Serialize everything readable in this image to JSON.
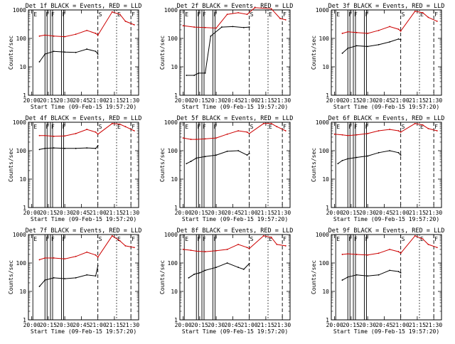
{
  "figure": {
    "ylabel": "Counts/sec",
    "xlabel": "Start Time (09-Feb-15 19:57:20)",
    "yticks": [
      "1",
      "10",
      "100",
      "1000"
    ],
    "xticks": [
      "20:00",
      "20:15",
      "20:30",
      "20:45",
      "21:00",
      "21:15",
      "21:30"
    ],
    "colors": {
      "events": "#000000",
      "lld": "#cc0000"
    }
  },
  "chart_data": [
    {
      "type": "line",
      "title": "Det 1f BLACK = Events, RED = LLD",
      "xlabel": "",
      "ylabel": "Counts/sec",
      "yscale": "log",
      "ylim": [
        1,
        1000
      ],
      "xlim": [
        "19:57",
        "21:37"
      ],
      "markers": [
        "E",
        "F",
        "F",
        "F",
        "S",
        "E",
        "F"
      ],
      "series": [
        {
          "name": "Events",
          "x": [
            "20:07",
            "20:12",
            "20:20",
            "20:30",
            "20:40",
            "20:50",
            "20:58",
            "21:00"
          ],
          "values": [
            15,
            28,
            35,
            33,
            32,
            42,
            35,
            28
          ]
        },
        {
          "name": "LLD",
          "x": [
            "20:07",
            "20:12",
            "20:20",
            "20:30",
            "20:40",
            "20:50",
            "20:58",
            "21:00",
            "21:13",
            "21:20",
            "21:25",
            "21:33"
          ],
          "values": [
            120,
            130,
            120,
            115,
            140,
            190,
            150,
            130,
            850,
            700,
            400,
            300
          ]
        }
      ]
    },
    {
      "type": "line",
      "title": "Det 2f BLACK = Events, RED = LLD",
      "xlabel": "",
      "ylabel": "Counts/sec",
      "yscale": "log",
      "ylim": [
        1,
        1000
      ],
      "xlim": [
        "19:57",
        "21:37"
      ],
      "markers": [
        "E",
        "F",
        "F",
        "F",
        "S",
        "E",
        "F"
      ],
      "series": [
        {
          "name": "Events",
          "x": [
            "20:03",
            "20:10",
            "20:14",
            "20:20",
            "20:25",
            "20:35",
            "20:45",
            "20:55",
            "21:00"
          ],
          "values": [
            5,
            5,
            6,
            6,
            120,
            250,
            260,
            240,
            250
          ]
        },
        {
          "name": "LLD",
          "x": [
            "20:00",
            "20:10",
            "20:20",
            "20:30",
            "20:40",
            "20:50",
            "20:58",
            "21:05",
            "21:20",
            "21:28",
            "21:33"
          ],
          "values": [
            280,
            250,
            240,
            230,
            700,
            800,
            700,
            1200,
            1100,
            500,
            450
          ]
        }
      ]
    },
    {
      "type": "line",
      "title": "Det 3f BLACK = Events, RED = LLD",
      "xlabel": "",
      "ylabel": "Counts/sec",
      "yscale": "log",
      "ylim": [
        1,
        1000
      ],
      "xlim": [
        "19:57",
        "21:37"
      ],
      "markers": [
        "E",
        "F",
        "F",
        "F",
        "S",
        "E",
        "F"
      ],
      "series": [
        {
          "name": "Events",
          "x": [
            "20:07",
            "20:12",
            "20:20",
            "20:30",
            "20:40",
            "20:50",
            "20:58",
            "21:00"
          ],
          "values": [
            30,
            45,
            55,
            52,
            60,
            75,
            95,
            90
          ]
        },
        {
          "name": "LLD",
          "x": [
            "20:07",
            "20:12",
            "20:20",
            "20:30",
            "20:40",
            "20:50",
            "20:58",
            "21:00",
            "21:13",
            "21:20",
            "21:25",
            "21:33"
          ],
          "values": [
            150,
            170,
            160,
            150,
            190,
            260,
            210,
            180,
            900,
            800,
            550,
            400
          ]
        }
      ]
    },
    {
      "type": "line",
      "title": "Det 4f BLACK = Events, RED = LLD",
      "xlabel": "",
      "ylabel": "Counts/sec",
      "yscale": "log",
      "ylim": [
        1,
        1000
      ],
      "xlim": [
        "19:57",
        "21:37"
      ],
      "markers": [
        "E",
        "F",
        "F",
        "F",
        "S",
        "E",
        "F"
      ],
      "series": [
        {
          "name": "Events",
          "x": [
            "20:07",
            "20:12",
            "20:20",
            "20:30",
            "20:40",
            "20:50",
            "20:58",
            "21:00"
          ],
          "values": [
            110,
            120,
            125,
            120,
            120,
            125,
            120,
            150
          ]
        },
        {
          "name": "LLD",
          "x": [
            "20:07",
            "20:12",
            "20:20",
            "20:30",
            "20:40",
            "20:50",
            "20:58",
            "21:00",
            "21:13",
            "21:20",
            "21:25",
            "21:33"
          ],
          "values": [
            340,
            340,
            320,
            330,
            400,
            560,
            450,
            380,
            900,
            850,
            700,
            500
          ]
        }
      ]
    },
    {
      "type": "line",
      "title": "Det 5f BLACK = Events, RED = LLD",
      "xlabel": "",
      "ylabel": "Counts/sec",
      "yscale": "log",
      "ylim": [
        1,
        1000
      ],
      "xlim": [
        "19:57",
        "21:37"
      ],
      "markers": [
        "E",
        "F",
        "F",
        "F",
        "S",
        "E",
        "F"
      ],
      "series": [
        {
          "name": "Events",
          "x": [
            "20:03",
            "20:07",
            "20:12",
            "20:20",
            "20:30",
            "20:40",
            "20:50",
            "20:58",
            "21:00"
          ],
          "values": [
            35,
            42,
            55,
            62,
            70,
            95,
            100,
            70,
            80
          ]
        },
        {
          "name": "LLD",
          "x": [
            "20:00",
            "20:07",
            "20:12",
            "20:20",
            "20:30",
            "20:40",
            "20:50",
            "20:58",
            "21:00",
            "21:13",
            "21:20",
            "21:25",
            "21:33"
          ],
          "values": [
            280,
            250,
            250,
            260,
            280,
            380,
            500,
            450,
            400,
            900,
            900,
            700,
            500
          ]
        }
      ]
    },
    {
      "type": "line",
      "title": "Det 6f BLACK = Events, RED = LLD",
      "xlabel": "",
      "ylabel": "Counts/sec",
      "yscale": "log",
      "ylim": [
        1,
        1000
      ],
      "xlim": [
        "19:57",
        "21:37"
      ],
      "markers": [
        "E",
        "F",
        "F",
        "F",
        "S",
        "E",
        "F"
      ],
      "series": [
        {
          "name": "Events",
          "x": [
            "20:03",
            "20:07",
            "20:12",
            "20:20",
            "20:30",
            "20:40",
            "20:50",
            "20:58",
            "21:00"
          ],
          "values": [
            35,
            45,
            52,
            58,
            65,
            85,
            100,
            85,
            70
          ]
        },
        {
          "name": "LLD",
          "x": [
            "20:00",
            "20:07",
            "20:12",
            "20:20",
            "20:30",
            "20:40",
            "20:50",
            "20:58",
            "21:00",
            "21:13",
            "21:20",
            "21:25",
            "21:33"
          ],
          "values": [
            380,
            360,
            340,
            360,
            400,
            500,
            560,
            500,
            450,
            900,
            800,
            600,
            500
          ]
        }
      ]
    },
    {
      "type": "line",
      "title": "Det 7f BLACK = Events, RED = LLD",
      "xlabel": "",
      "ylabel": "Counts/sec",
      "yscale": "log",
      "ylim": [
        1,
        1000
      ],
      "xlim": [
        "19:57",
        "21:37"
      ],
      "markers": [
        "E",
        "F",
        "F",
        "F",
        "S",
        "E",
        "F"
      ],
      "series": [
        {
          "name": "Events",
          "x": [
            "20:07",
            "20:12",
            "20:20",
            "20:30",
            "20:40",
            "20:50",
            "20:58",
            "21:00"
          ],
          "values": [
            15,
            25,
            30,
            28,
            30,
            38,
            35,
            80
          ]
        },
        {
          "name": "LLD",
          "x": [
            "20:07",
            "20:12",
            "20:20",
            "20:30",
            "20:40",
            "20:50",
            "20:58",
            "21:00",
            "21:13",
            "21:20",
            "21:25",
            "21:33"
          ],
          "values": [
            130,
            150,
            150,
            140,
            170,
            240,
            190,
            160,
            900,
            600,
            400,
            350
          ]
        }
      ]
    },
    {
      "type": "line",
      "title": "Det 8f BLACK = Events, RED = LLD",
      "xlabel": "",
      "ylabel": "Counts/sec",
      "yscale": "log",
      "ylim": [
        1,
        1000
      ],
      "xlim": [
        "19:57",
        "21:37"
      ],
      "markers": [
        "E",
        "F",
        "F",
        "F",
        "S",
        "E",
        "F"
      ],
      "series": [
        {
          "name": "Events",
          "x": [
            "20:05",
            "20:10",
            "20:15",
            "20:20",
            "20:30",
            "20:40",
            "20:50",
            "20:55",
            "21:00"
          ],
          "values": [
            30,
            40,
            45,
            55,
            70,
            100,
            70,
            60,
            95
          ]
        },
        {
          "name": "LLD",
          "x": [
            "20:00",
            "20:07",
            "20:12",
            "20:20",
            "20:30",
            "20:40",
            "20:50",
            "20:58",
            "21:00",
            "21:13",
            "21:20",
            "21:25",
            "21:33"
          ],
          "values": [
            300,
            280,
            260,
            250,
            270,
            300,
            450,
            350,
            320,
            900,
            800,
            450,
            400
          ]
        }
      ]
    },
    {
      "type": "line",
      "title": "Det 9f BLACK = Events, RED = LLD",
      "xlabel": "",
      "ylabel": "Counts/sec",
      "yscale": "log",
      "ylim": [
        1,
        1000
      ],
      "xlim": [
        "19:57",
        "21:37"
      ],
      "markers": [
        "E",
        "F",
        "F",
        "F",
        "S",
        "E",
        "F"
      ],
      "series": [
        {
          "name": "Events",
          "x": [
            "20:07",
            "20:12",
            "20:20",
            "20:30",
            "20:40",
            "20:50",
            "20:58",
            "21:00"
          ],
          "values": [
            25,
            32,
            38,
            35,
            38,
            55,
            50,
            45
          ]
        },
        {
          "name": "LLD",
          "x": [
            "20:07",
            "20:12",
            "20:20",
            "20:30",
            "20:40",
            "20:50",
            "20:58",
            "21:00",
            "21:13",
            "21:20",
            "21:25",
            "21:33"
          ],
          "values": [
            200,
            210,
            200,
            190,
            220,
            300,
            250,
            220,
            900,
            700,
            450,
            350
          ]
        }
      ]
    }
  ]
}
